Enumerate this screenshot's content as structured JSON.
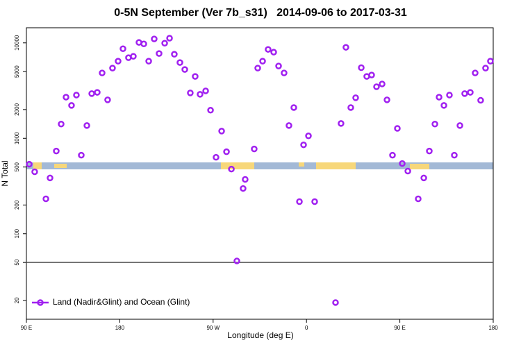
{
  "chart_data": {
    "type": "scatter",
    "title": "0-5N September (Ver 7b_s31)   2014-09-06 to 2017-03-31",
    "x_label": "Longitude (deg E)",
    "y_label": "N Total",
    "log_y": true,
    "legend": "bottom-left",
    "xlim": [
      90,
      540
    ],
    "ylim": [
      12.7,
      14400
    ],
    "xticks": [
      {
        "value": 90,
        "label": "90 E"
      },
      180,
      {
        "value": 270,
        "label": "90 W"
      },
      {
        "value": 360,
        "label": "0"
      },
      {
        "value": 450,
        "label": "90 E"
      },
      {
        "value": 540,
        "label": "180"
      }
    ],
    "yticks": [
      20,
      50,
      100,
      200,
      500,
      1000,
      2000,
      5000,
      10000
    ],
    "hline": 50,
    "series": [
      {
        "name": "Land (Nadir&Glint) and Ocean (Glint)",
        "color": "#a020f0",
        "x": [
          92.7,
          98,
          108.8,
          112.8,
          118.8,
          123.5,
          128.2,
          133.5,
          138.2,
          142.9,
          148.3,
          153,
          158.3,
          163,
          168.3,
          173,
          178.4,
          183.1,
          188.4,
          193.1,
          198.5,
          203.2,
          207.9,
          213.2,
          217.9,
          223.3,
          228,
          232.6,
          238,
          242.7,
          248,
          252.7,
          257.4,
          262.8,
          267.5,
          272.8,
          278.2,
          282.9,
          287.6,
          292.9,
          298.9,
          300.9,
          309.6,
          313,
          317.7,
          323,
          328.4,
          333.1,
          338.4,
          343.1,
          347.8,
          353.2,
          357.2,
          361.9,
          367.9,
          388,
          393.3,
          398,
          402.7,
          407.4,
          412.8,
          418.1,
          422.8,
          427.5,
          432.9,
          437.6,
          442.9,
          447.6,
          452.3,
          457.7,
          467.7,
          473.1,
          478.4,
          483.8,
          487.8,
          492.5,
          497.8,
          502.5,
          507.9,
          512.5,
          517.9,
          522.6,
          527.9,
          532.6,
          537.3
        ],
        "values": [
          535,
          446,
          232,
          384,
          735,
          1410,
          2700,
          2210,
          2840,
          665,
          1360,
          2940,
          3030,
          4840,
          2530,
          5440,
          6430,
          8680,
          6990,
          7230,
          10100,
          9760,
          6430,
          11000,
          7730,
          9920,
          11200,
          7600,
          6220,
          5260,
          2990,
          4450,
          2890,
          3140,
          1970,
          632,
          1190,
          723,
          476,
          51.8,
          298,
          371,
          773,
          5440,
          6430,
          8540,
          7990,
          5720,
          4840,
          1360,
          2100,
          217,
          854,
          1060,
          217,
          19,
          1430,
          8980,
          2100,
          2660,
          5500,
          4450,
          4600,
          3470,
          3710,
          2530,
          665,
          1270,
          544,
          453,
          232,
          384,
          735,
          1410,
          2700,
          2210,
          2840,
          665,
          1360,
          2940,
          3030,
          4840,
          2500,
          5440,
          6430
        ]
      }
    ]
  }
}
